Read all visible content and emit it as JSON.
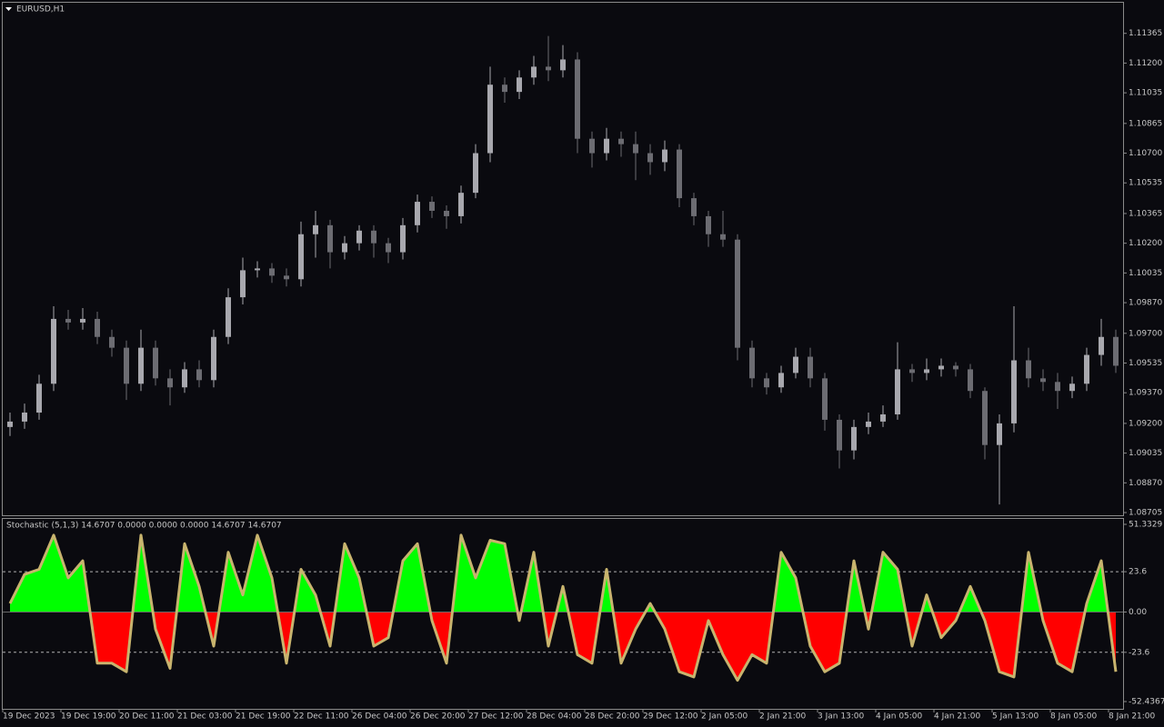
{
  "chart_data": [
    {
      "type": "candlestick",
      "title": "EURUSD,H1",
      "categories": [
        "19 Dec 2023",
        null,
        null,
        null,
        "19 Dec 19:00",
        null,
        null,
        null,
        "20 Dec 11:00",
        null,
        null,
        null,
        "21 Dec 03:00",
        null,
        null,
        null,
        "21 Dec 19:00",
        null,
        null,
        null,
        "22 Dec 11:00",
        null,
        null,
        null,
        "26 Dec 04:00",
        null,
        null,
        null,
        "26 Dec 20:00",
        null,
        null,
        null,
        "27 Dec 12:00",
        null,
        null,
        null,
        "28 Dec 04:00",
        null,
        null,
        null,
        "28 Dec 20:00",
        null,
        null,
        null,
        "29 Dec 12:00",
        null,
        null,
        null,
        "2 Jan 05:00",
        null,
        null,
        null,
        "2 Jan 21:00",
        null,
        null,
        null,
        "3 Jan 13:00",
        null,
        null,
        null,
        "4 Jan 05:00",
        null,
        null,
        null,
        "4 Jan 21:00",
        null,
        null,
        null,
        "5 Jan 13:00",
        null,
        null,
        null,
        "8 Jan 05:00",
        null,
        null,
        null,
        "8 Jan 21:00"
      ],
      "open": [
        1.0918,
        1.0921,
        1.0926,
        1.0942,
        1.0978,
        1.0976,
        1.0978,
        1.0968,
        1.0962,
        1.0942,
        1.0962,
        1.0945,
        1.094,
        1.095,
        1.0944,
        1.0968,
        1.099,
        1.1005,
        1.1006,
        1.1002,
        1.1,
        1.1025,
        1.103,
        1.1015,
        1.102,
        1.1027,
        1.102,
        1.1015,
        1.103,
        1.1043,
        1.1038,
        1.1035,
        1.1048,
        1.107,
        1.1108,
        1.1104,
        1.1112,
        1.1118,
        1.1116,
        1.1122,
        1.1078,
        1.107,
        1.1078,
        1.1075,
        1.107,
        1.1065,
        1.1072,
        1.1045,
        1.1035,
        1.1025,
        1.1022,
        1.0962,
        1.0945,
        1.094,
        1.0948,
        1.0957,
        1.0945,
        1.0922,
        1.0905,
        1.0918,
        1.0921,
        1.0925,
        1.095,
        1.0948,
        1.095,
        1.0952,
        1.095,
        1.0938,
        1.0908,
        1.092,
        1.0955,
        1.0945,
        1.0943,
        1.0938,
        1.0942,
        1.0958,
        1.0968
      ],
      "high": [
        1.0926,
        1.0931,
        1.0947,
        1.0985,
        1.0983,
        1.0984,
        1.0982,
        1.0972,
        1.0966,
        1.0972,
        1.0966,
        1.095,
        1.0954,
        1.0955,
        1.0972,
        1.0995,
        1.1012,
        1.101,
        1.1009,
        1.1006,
        1.1032,
        1.1038,
        1.1033,
        1.1024,
        1.103,
        1.103,
        1.1023,
        1.1034,
        1.1047,
        1.1046,
        1.1041,
        1.1052,
        1.1075,
        1.1118,
        1.1112,
        1.1116,
        1.1124,
        1.1135,
        1.113,
        1.1126,
        1.1082,
        1.1084,
        1.1082,
        1.1082,
        1.1075,
        1.1077,
        1.1075,
        1.1048,
        1.1038,
        1.1038,
        1.1025,
        1.0966,
        1.0948,
        1.0952,
        1.0962,
        1.0962,
        1.0948,
        1.0925,
        1.0922,
        1.0926,
        1.093,
        1.0965,
        1.0953,
        1.0956,
        1.0956,
        1.0954,
        1.0953,
        1.094,
        1.0925,
        1.0985,
        1.0962,
        1.095,
        1.0948,
        1.0946,
        1.0962,
        1.0978,
        1.0972
      ],
      "low": [
        1.0913,
        1.0917,
        1.0922,
        1.0938,
        1.0972,
        1.0972,
        1.0964,
        1.0957,
        1.0933,
        1.0938,
        1.0941,
        1.093,
        1.0937,
        1.094,
        1.094,
        1.0964,
        1.0986,
        1.1001,
        1.0998,
        1.0996,
        1.0996,
        1.1012,
        1.1006,
        1.1011,
        1.1016,
        1.1012,
        1.1009,
        1.1011,
        1.1026,
        1.1034,
        1.1028,
        1.1031,
        1.1045,
        1.1065,
        1.1098,
        1.11,
        1.1108,
        1.111,
        1.1112,
        1.107,
        1.1062,
        1.1066,
        1.1068,
        1.1055,
        1.1058,
        1.106,
        1.104,
        1.103,
        1.1018,
        1.1018,
        1.0955,
        1.094,
        1.0936,
        1.0937,
        1.0945,
        1.094,
        1.0916,
        1.0895,
        1.09,
        1.0914,
        1.0918,
        1.0922,
        1.0943,
        1.0944,
        1.0946,
        1.0946,
        1.0934,
        1.09,
        1.0875,
        1.0915,
        1.094,
        1.0938,
        1.0928,
        1.0934,
        1.0938,
        1.0952,
        1.0948
      ],
      "close": [
        1.0921,
        1.0926,
        1.0942,
        1.0978,
        1.0976,
        1.0978,
        1.0968,
        1.0962,
        1.0942,
        1.0962,
        1.0945,
        1.094,
        1.095,
        1.0944,
        1.0968,
        1.099,
        1.1005,
        1.1006,
        1.1002,
        1.1,
        1.1025,
        1.103,
        1.1015,
        1.102,
        1.1027,
        1.102,
        1.1015,
        1.103,
        1.1043,
        1.1038,
        1.1035,
        1.1048,
        1.107,
        1.1108,
        1.1104,
        1.1112,
        1.1118,
        1.1116,
        1.1122,
        1.1078,
        1.107,
        1.1078,
        1.1075,
        1.107,
        1.1065,
        1.1072,
        1.1045,
        1.1035,
        1.1025,
        1.1022,
        1.0962,
        1.0945,
        1.094,
        1.0948,
        1.0957,
        1.0945,
        1.0922,
        1.0905,
        1.0918,
        1.0921,
        1.0925,
        1.095,
        1.0948,
        1.095,
        1.0952,
        1.095,
        1.0938,
        1.0908,
        1.092,
        1.0955,
        1.0945,
        1.0943,
        1.0938,
        1.0942,
        1.0958,
        1.0968,
        1.0952
      ],
      "up_color": "#a8a8ae",
      "down_color": "#6c6c72",
      "ylim": [
        1.0869,
        1.11535
      ],
      "yticks": [
        {
          "value": 1.11365,
          "label": "1.11365"
        },
        {
          "value": 1.112,
          "label": "1.11200"
        },
        {
          "value": 1.11035,
          "label": "1.11035"
        },
        {
          "value": 1.10865,
          "label": "1.10865"
        },
        {
          "value": 1.107,
          "label": "1.10700"
        },
        {
          "value": 1.10535,
          "label": "1.10535"
        },
        {
          "value": 1.10365,
          "label": "1.10365"
        },
        {
          "value": 1.102,
          "label": "1.10200"
        },
        {
          "value": 1.10035,
          "label": "1.10035"
        },
        {
          "value": 1.0987,
          "label": "1.09870"
        },
        {
          "value": 1.097,
          "label": "1.09700"
        },
        {
          "value": 1.09535,
          "label": "1.09535"
        },
        {
          "value": 1.0937,
          "label": "1.09370"
        },
        {
          "value": 1.092,
          "label": "1.09200"
        },
        {
          "value": 1.09035,
          "label": "1.09035"
        },
        {
          "value": 1.0887,
          "label": "1.08870"
        },
        {
          "value": 1.08705,
          "label": "1.08705"
        }
      ]
    },
    {
      "type": "oscillator",
      "title": "Stochastic (5,1,3) 14.6707 0.0000 0.0000 0.0000 14.6707 14.6707",
      "values": [
        5,
        22,
        25,
        45,
        20,
        30,
        -30,
        -30,
        -35,
        45,
        -10,
        -33,
        40,
        15,
        -20,
        35,
        10,
        45,
        20,
        -30,
        25,
        10,
        -20,
        40,
        20,
        -20,
        -15,
        30,
        40,
        -5,
        -30,
        45,
        20,
        42,
        40,
        -5,
        35,
        -20,
        15,
        -25,
        -30,
        25,
        -30,
        -10,
        5,
        -10,
        -35,
        -38,
        -5,
        -25,
        -40,
        -25,
        -30,
        35,
        20,
        -20,
        -35,
        -30,
        30,
        -10,
        35,
        25,
        -20,
        10,
        -15,
        -5,
        15,
        -5,
        -35,
        -38,
        35,
        -5,
        -30,
        -35,
        5,
        30,
        -35
      ],
      "color": "#c8b46e",
      "positive_color": "#00ff00",
      "negative_color": "#ff0000",
      "ylim": [
        -52.4367,
        51.3329
      ],
      "yticks": [
        51.3329,
        23.6,
        {
          "value": 0,
          "label": "0.00"
        },
        -23.6,
        -52.4367
      ],
      "dashed_levels": [
        23.6,
        -23.6
      ]
    }
  ]
}
